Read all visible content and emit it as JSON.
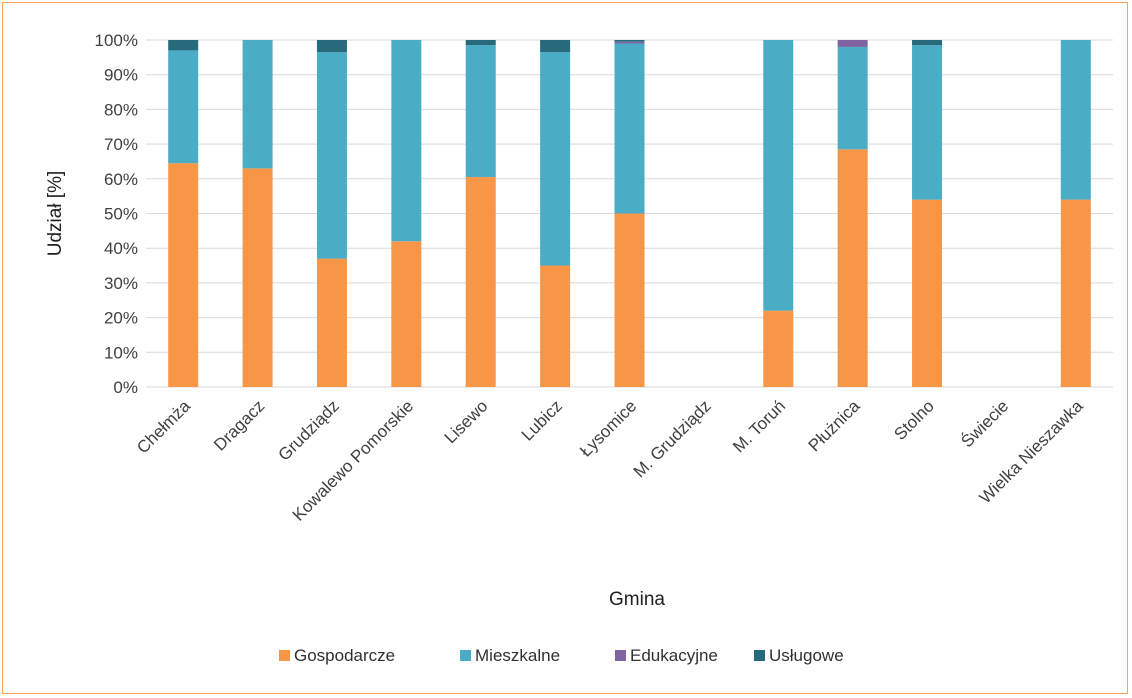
{
  "chart_data": {
    "type": "bar",
    "stacked": true,
    "percent": true,
    "xlabel": "Gmina",
    "ylabel": "Udział [%]",
    "ylim": [
      0,
      100
    ],
    "yticks": [
      "0%",
      "10%",
      "20%",
      "30%",
      "40%",
      "50%",
      "60%",
      "70%",
      "80%",
      "90%",
      "100%"
    ],
    "grid": true,
    "legend_position": "bottom",
    "categories": [
      "Chełmża",
      "Dragacz",
      "Grudziądz",
      "Kowalewo Pomorskie",
      "Lisewo",
      "Lubicz",
      "Łysomice",
      "M. Grudziądz",
      "M. Toruń",
      "Płużnica",
      "Stolno",
      "Świecie",
      "Wielka Nieszawka"
    ],
    "series": [
      {
        "name": "Gospodarcze",
        "color": "#f79646",
        "values": [
          64.5,
          63,
          37,
          42,
          60.5,
          35,
          50,
          0,
          22,
          68.5,
          54,
          0,
          54
        ]
      },
      {
        "name": "Mieszkalne",
        "color": "#4bacc6",
        "values": [
          32.5,
          37,
          59.5,
          58,
          38,
          61.5,
          49,
          0,
          78,
          29.5,
          44.5,
          0,
          46
        ]
      },
      {
        "name": "Edukacyjne",
        "color": "#8064a2",
        "values": [
          0,
          0,
          0,
          0,
          0,
          0,
          0.5,
          0,
          0,
          2,
          0,
          0,
          0
        ]
      },
      {
        "name": "Usługowe",
        "color": "#276a7c",
        "values": [
          3,
          0,
          3.5,
          0,
          1.5,
          3.5,
          0.5,
          0,
          0,
          0,
          1.5,
          0,
          0
        ]
      }
    ]
  }
}
